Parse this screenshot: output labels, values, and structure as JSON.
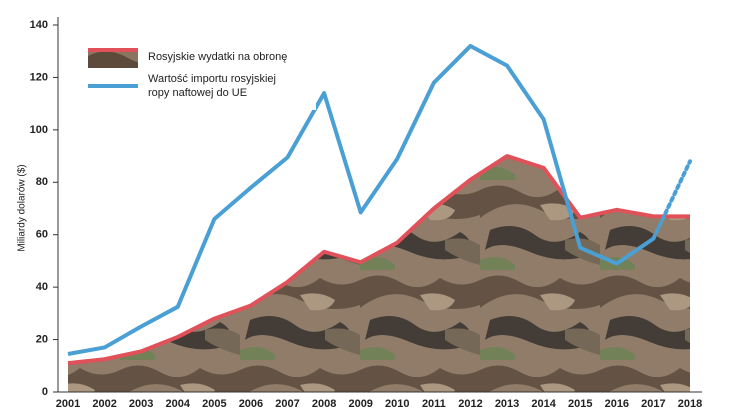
{
  "chart_data": {
    "type": "line",
    "y_label": "Miliardy dolarów ($)",
    "categories": [
      "2001",
      "2002",
      "2003",
      "2004",
      "2005",
      "2006",
      "2007",
      "2008",
      "2009",
      "2010",
      "2011",
      "2012",
      "2013",
      "2014",
      "2015",
      "2016",
      "2017",
      "2018"
    ],
    "series": [
      {
        "name": "Rosyjskie wydatki na obronę",
        "color": "#e0515a",
        "fill": "camo",
        "values": [
          11,
          12.5,
          15.5,
          21,
          28,
          33,
          42,
          53.5,
          49.5,
          57,
          70,
          81,
          90,
          85.5,
          66.5,
          69.5,
          67,
          67
        ]
      },
      {
        "name": "Wartość importu rosyjskiej ropy naftowej do UE",
        "color": "#4a9fd4",
        "dotted_from": "2017",
        "values": [
          14.5,
          17,
          25,
          32.5,
          66,
          78,
          89.5,
          114,
          68.5,
          89,
          118,
          132,
          124.5,
          104,
          55,
          49,
          58.5,
          88
        ]
      }
    ],
    "ylim": [
      0,
      140
    ],
    "yticks": [
      0,
      20,
      40,
      60,
      80,
      100,
      120,
      140
    ],
    "grid": false
  }
}
